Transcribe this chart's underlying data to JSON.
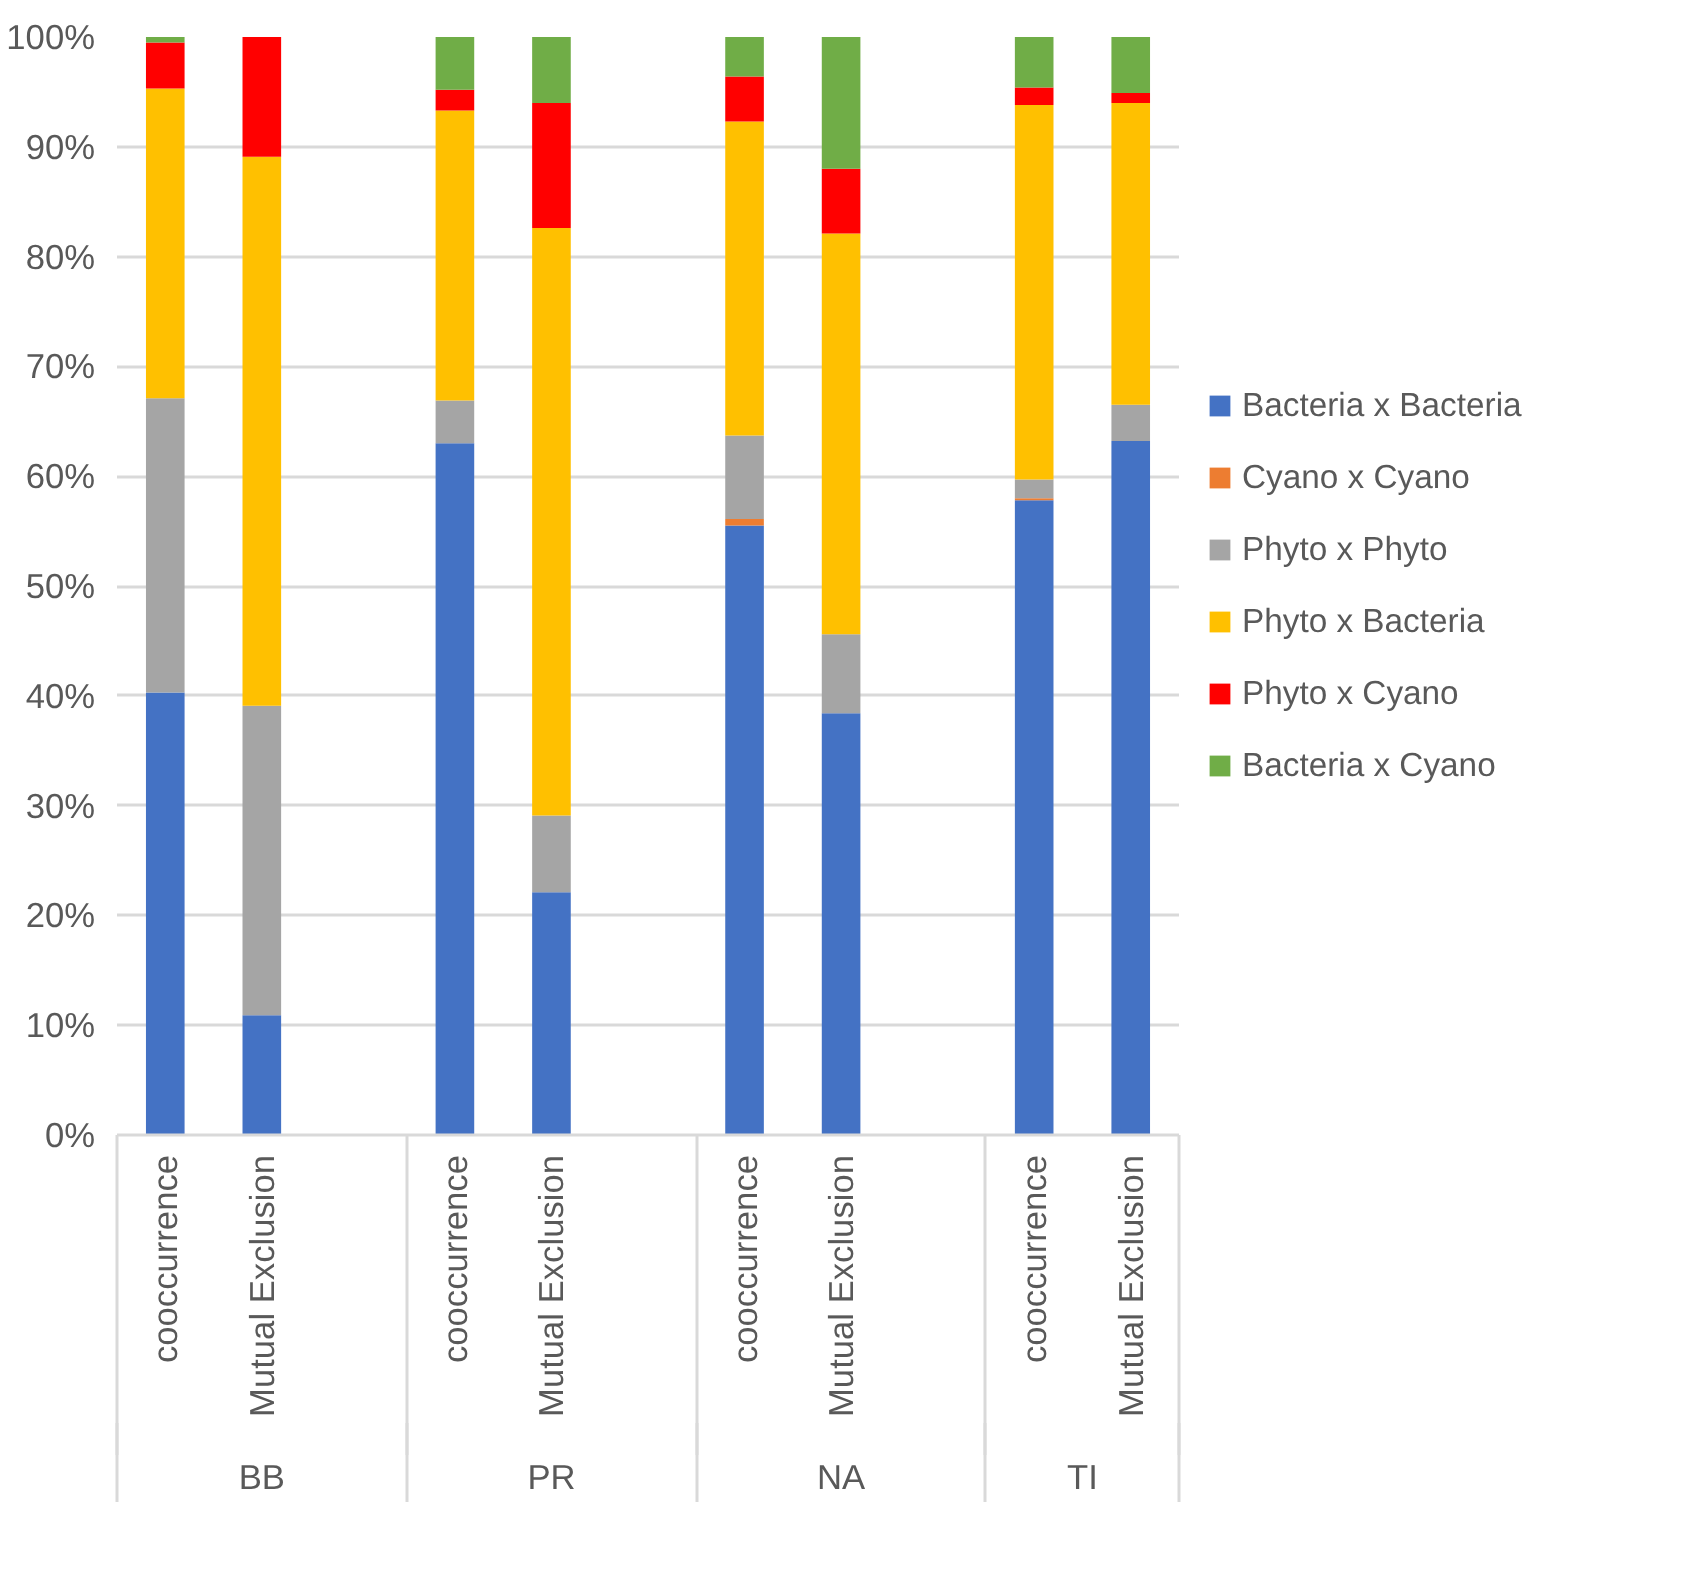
{
  "chart_data": {
    "type": "bar",
    "stacked": true,
    "categories": [
      "cooccurrence",
      "Mutual Exclusion",
      null,
      "cooccurrence",
      "Mutual Exclusion",
      null,
      "cooccurrence",
      "Mutual Exclusion",
      null,
      "cooccurrence",
      "Mutual Exclusion"
    ],
    "series": [
      {
        "name": "Bacteria x Bacteria",
        "color": "#4472c4",
        "values": [
          40.3,
          10.9,
          null,
          63.0,
          22.1,
          null,
          55.5,
          38.4,
          null,
          57.8,
          63.2
        ]
      },
      {
        "name": "Cyano x Cyano",
        "color": "#ed7d31",
        "values": [
          0,
          0,
          null,
          0,
          0,
          null,
          0.6,
          0,
          null,
          0.2,
          0
        ]
      },
      {
        "name": "Phyto x Phyto",
        "color": "#a5a5a5",
        "values": [
          26.8,
          28.2,
          null,
          3.9,
          7.0,
          null,
          7.6,
          7.2,
          null,
          1.7,
          3.3
        ]
      },
      {
        "name": "Phyto x Bacteria",
        "color": "#ffc000",
        "values": [
          28.2,
          50.0,
          null,
          26.4,
          53.5,
          null,
          28.6,
          36.5,
          null,
          34.1,
          27.5
        ]
      },
      {
        "name": "Phyto x Cyano",
        "color": "#ff0000",
        "values": [
          4.2,
          10.9,
          null,
          1.9,
          11.4,
          null,
          4.1,
          5.9,
          null,
          1.6,
          0.9
        ]
      },
      {
        "name": "Bacteria x Cyano",
        "color": "#70ad47",
        "values": [
          0.5,
          0,
          null,
          4.8,
          6.0,
          null,
          3.6,
          12.0,
          null,
          4.6,
          5.1
        ]
      }
    ],
    "ylim": [
      0,
      100
    ],
    "yticks": [
      {
        "value": 0,
        "label": "0%"
      },
      {
        "value": 10,
        "label": "10%"
      },
      {
        "value": 20,
        "label": "20%"
      },
      {
        "value": 30,
        "label": "30%"
      },
      {
        "value": 40,
        "label": "40%"
      },
      {
        "value": 50,
        "label": "50%"
      },
      {
        "value": 60,
        "label": "60%"
      },
      {
        "value": 70,
        "label": "70%"
      },
      {
        "value": 80,
        "label": "80%"
      },
      {
        "value": 90,
        "label": "90%"
      },
      {
        "value": 100,
        "label": "100%"
      }
    ],
    "grid": "y",
    "legend": "right",
    "annotations": [
      "BB",
      "PR",
      "NA",
      "TI"
    ]
  }
}
